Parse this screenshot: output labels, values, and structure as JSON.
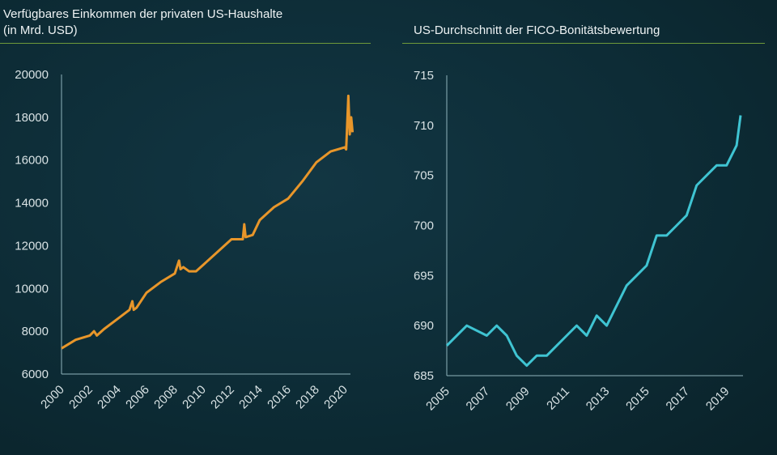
{
  "chart_data": [
    {
      "type": "line",
      "title": "Verfügbares Einkommen  der privaten US-Haushalte  (in Mrd. USD)",
      "ylim": [
        6000,
        20000
      ],
      "yticks": [
        6000,
        8000,
        10000,
        12000,
        14000,
        16000,
        18000,
        20000
      ],
      "xticks": [
        2000,
        2002,
        2004,
        2006,
        2008,
        2010,
        2012,
        2014,
        2016,
        2018,
        2020
      ],
      "color": "#e8962a",
      "x": [
        2000,
        2001,
        2002,
        2002.3,
        2002.5,
        2003,
        2004,
        2004.8,
        2005,
        2005.1,
        2005.3,
        2006,
        2007,
        2008,
        2008.3,
        2008.4,
        2008.6,
        2009,
        2009.5,
        2010,
        2011,
        2012,
        2012.8,
        2012.9,
        2013.0,
        2013.5,
        2014,
        2015,
        2016,
        2017,
        2018,
        2019,
        2020.0,
        2020.1,
        2020.25,
        2020.35,
        2020.45,
        2020.55
      ],
      "y": [
        7200,
        7600,
        7800,
        8000,
        7800,
        8100,
        8600,
        9000,
        9400,
        9000,
        9100,
        9800,
        10300,
        10700,
        11300,
        10900,
        11000,
        10800,
        10800,
        11100,
        11700,
        12300,
        12300,
        13000,
        12400,
        12500,
        13200,
        13800,
        14200,
        15000,
        15900,
        16400,
        16600,
        16500,
        19000,
        17200,
        18000,
        17300
      ]
    },
    {
      "type": "line",
      "title": "US-Durchschnitt  der FICO-Bonitätsbewertung",
      "ylim": [
        685,
        715
      ],
      "yticks": [
        685,
        690,
        695,
        700,
        705,
        710,
        715
      ],
      "xticks": [
        2005,
        2007,
        2009,
        2011,
        2013,
        2015,
        2017,
        2019
      ],
      "color": "#3fc4d2",
      "x": [
        2005,
        2006,
        2007,
        2007.5,
        2008,
        2008.5,
        2009,
        2009.5,
        2010,
        2010.5,
        2011,
        2011.5,
        2012,
        2012.5,
        2013,
        2013.5,
        2014,
        2014.5,
        2015,
        2015.5,
        2016,
        2016.5,
        2017,
        2017.5,
        2018,
        2018.5,
        2019,
        2019.5,
        2019.7
      ],
      "y": [
        688,
        690,
        689,
        690,
        689,
        687,
        686,
        687,
        687,
        688,
        689,
        690,
        689,
        691,
        690,
        692,
        694,
        695,
        696,
        699,
        699,
        700,
        701,
        704,
        705,
        706,
        706,
        708,
        711
      ]
    }
  ]
}
